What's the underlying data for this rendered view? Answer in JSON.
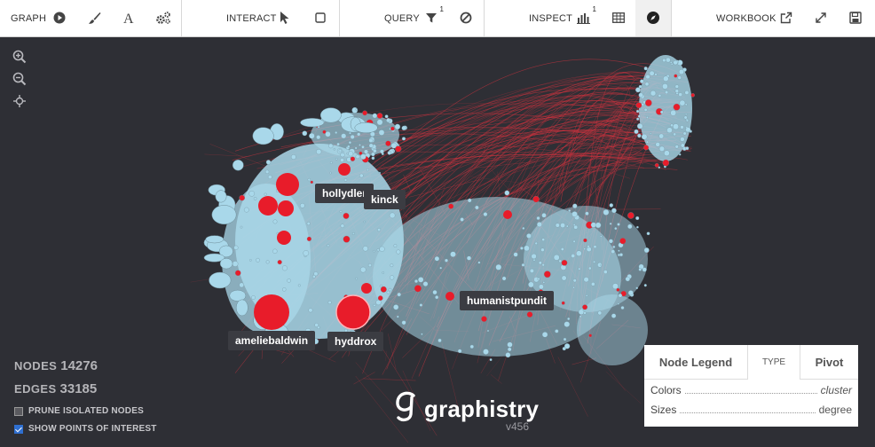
{
  "toolbar": {
    "graph_label": "GRAPH",
    "interact_label": "INTERACT",
    "query_label": "QUERY",
    "query_badge": "1",
    "inspect_label": "INSPECT",
    "inspect_badge": "1",
    "workbook_label": "WORKBOOK"
  },
  "graph": {
    "labels": {
      "hollydler": "hollydler",
      "kinck": "kinck",
      "humanistpundit": "humanistpundit",
      "ameliebaldwin": "ameliebaldwin",
      "hyddrox": "hyddrox"
    },
    "colors": {
      "background": "#2e2f35",
      "node": "#a9d8ea",
      "highlight": "#e81c2a",
      "edge": "#d2333f"
    }
  },
  "stats": {
    "nodes_label": "NODES",
    "nodes_value": "14276",
    "edges_label": "EDGES",
    "edges_value": "33185"
  },
  "options": {
    "prune_label": "PRUNE ISOLATED NODES",
    "prune_checked": false,
    "poi_label": "SHOW POINTS OF INTEREST",
    "poi_checked": true
  },
  "brand": {
    "name": "graphistry",
    "version": "v456"
  },
  "legend": {
    "tab_legend": "Node Legend",
    "tab_type": "TYPE",
    "tab_pivot": "Pivot",
    "colors_label": "Colors",
    "colors_value": "cluster",
    "sizes_label": "Sizes",
    "sizes_value": "degree"
  }
}
